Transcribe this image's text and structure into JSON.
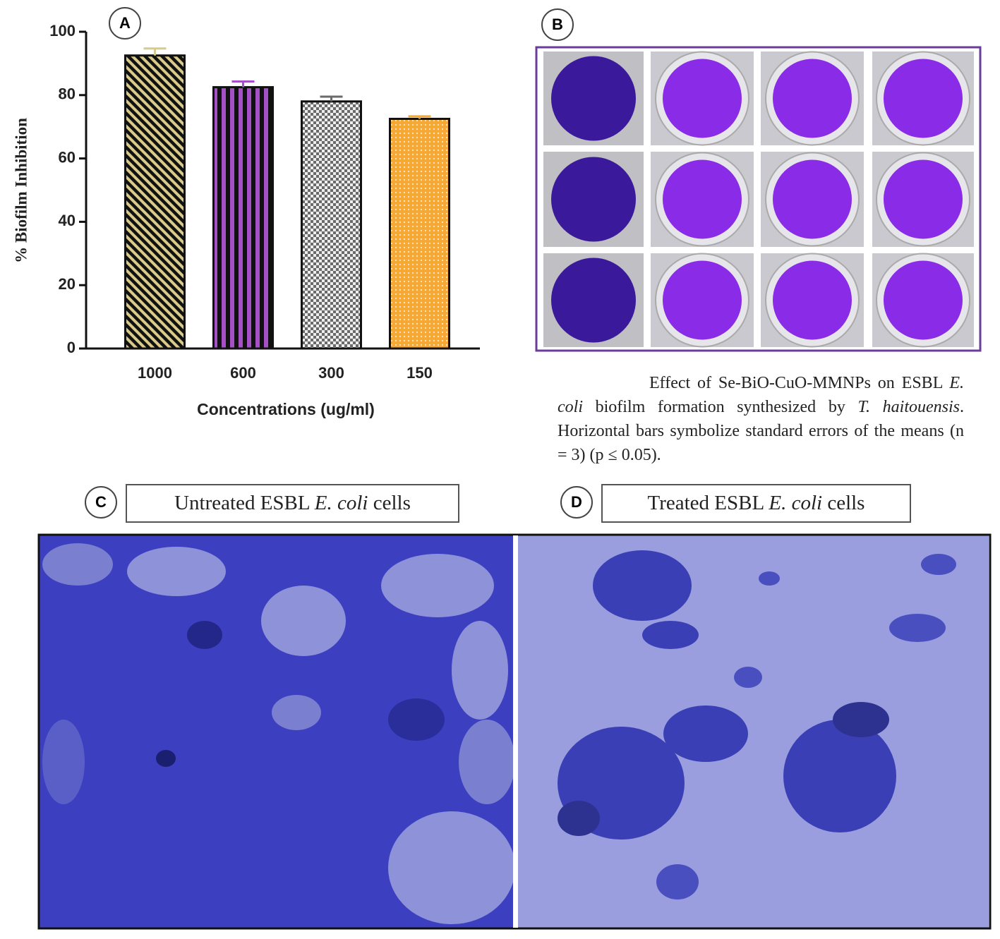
{
  "chart_data": {
    "type": "bar",
    "y_label": "% Biofilm Inhibition",
    "x_label": "Concentrations (ug/ml)",
    "categories": [
      "1000",
      "600",
      "300",
      "150"
    ],
    "values": [
      92.5,
      82.5,
      78,
      72.5
    ],
    "errors": [
      2.2,
      1.8,
      1.5,
      0.8
    ],
    "colors": [
      "#d8c98c",
      "#a650c8",
      "#6a6a6a",
      "#f5a833"
    ],
    "ylim": [
      0,
      100
    ],
    "yticks": [
      0,
      20,
      40,
      60,
      80,
      100
    ]
  },
  "panel_labels": [
    "A",
    "B",
    "C",
    "D"
  ],
  "caption": [
    "Effect of Se-BiO-CuO-MMNPs on ESBL ",
    "E. coli",
    " biofilm formation synthesized by ",
    "T. haitouensis",
    ". Horizontal bars symbolize standard errors of the means (n = 3) (p ≤ 0.05)."
  ],
  "micrograph_labels": [
    [
      "Untreated ESBL ",
      "E. coli",
      " cells"
    ],
    [
      "Treated ESBL ",
      "E. coli",
      " cells"
    ]
  ]
}
